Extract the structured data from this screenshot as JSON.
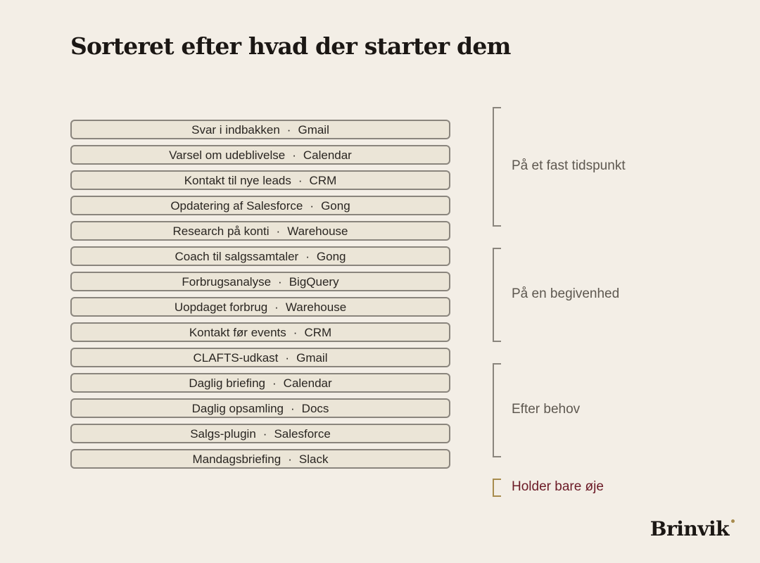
{
  "title": "Sorteret efter hvad der starter dem",
  "separator": "·",
  "rows": [
    {
      "name": "Svar i indbakken",
      "tool": "Gmail"
    },
    {
      "name": "Varsel om udeblivelse",
      "tool": "Calendar"
    },
    {
      "name": "Kontakt til nye leads",
      "tool": "CRM"
    },
    {
      "name": "Opdatering af Salesforce",
      "tool": "Gong"
    },
    {
      "name": "Research på konti",
      "tool": "Warehouse"
    },
    {
      "name": "Coach til salgssamtaler",
      "tool": "Gong"
    },
    {
      "name": "Forbrugsanalyse",
      "tool": "BigQuery"
    },
    {
      "name": "Uopdaget forbrug",
      "tool": "Warehouse"
    },
    {
      "name": "Kontakt før events",
      "tool": "CRM"
    },
    {
      "name": "CLAFTS-udkast",
      "tool": "Gmail"
    },
    {
      "name": "Daglig briefing",
      "tool": "Calendar"
    },
    {
      "name": "Daglig opsamling",
      "tool": "Docs"
    },
    {
      "name": "Salgs-plugin",
      "tool": "Salesforce"
    },
    {
      "name": "Mandagsbriefing",
      "tool": "Slack"
    }
  ],
  "groups": [
    {
      "label": "På et fast tidspunkt"
    },
    {
      "label": "På en begivenhed"
    },
    {
      "label": "Efter behov"
    },
    {
      "label": "Holder bare øje"
    }
  ],
  "brand": "Brinvik",
  "colors": {
    "background": "#f3eee6",
    "row_fill": "#ebe5d7",
    "border": "#8a857d",
    "accent_gold": "#a88c4e",
    "accent_maroon": "#6b1a26"
  }
}
